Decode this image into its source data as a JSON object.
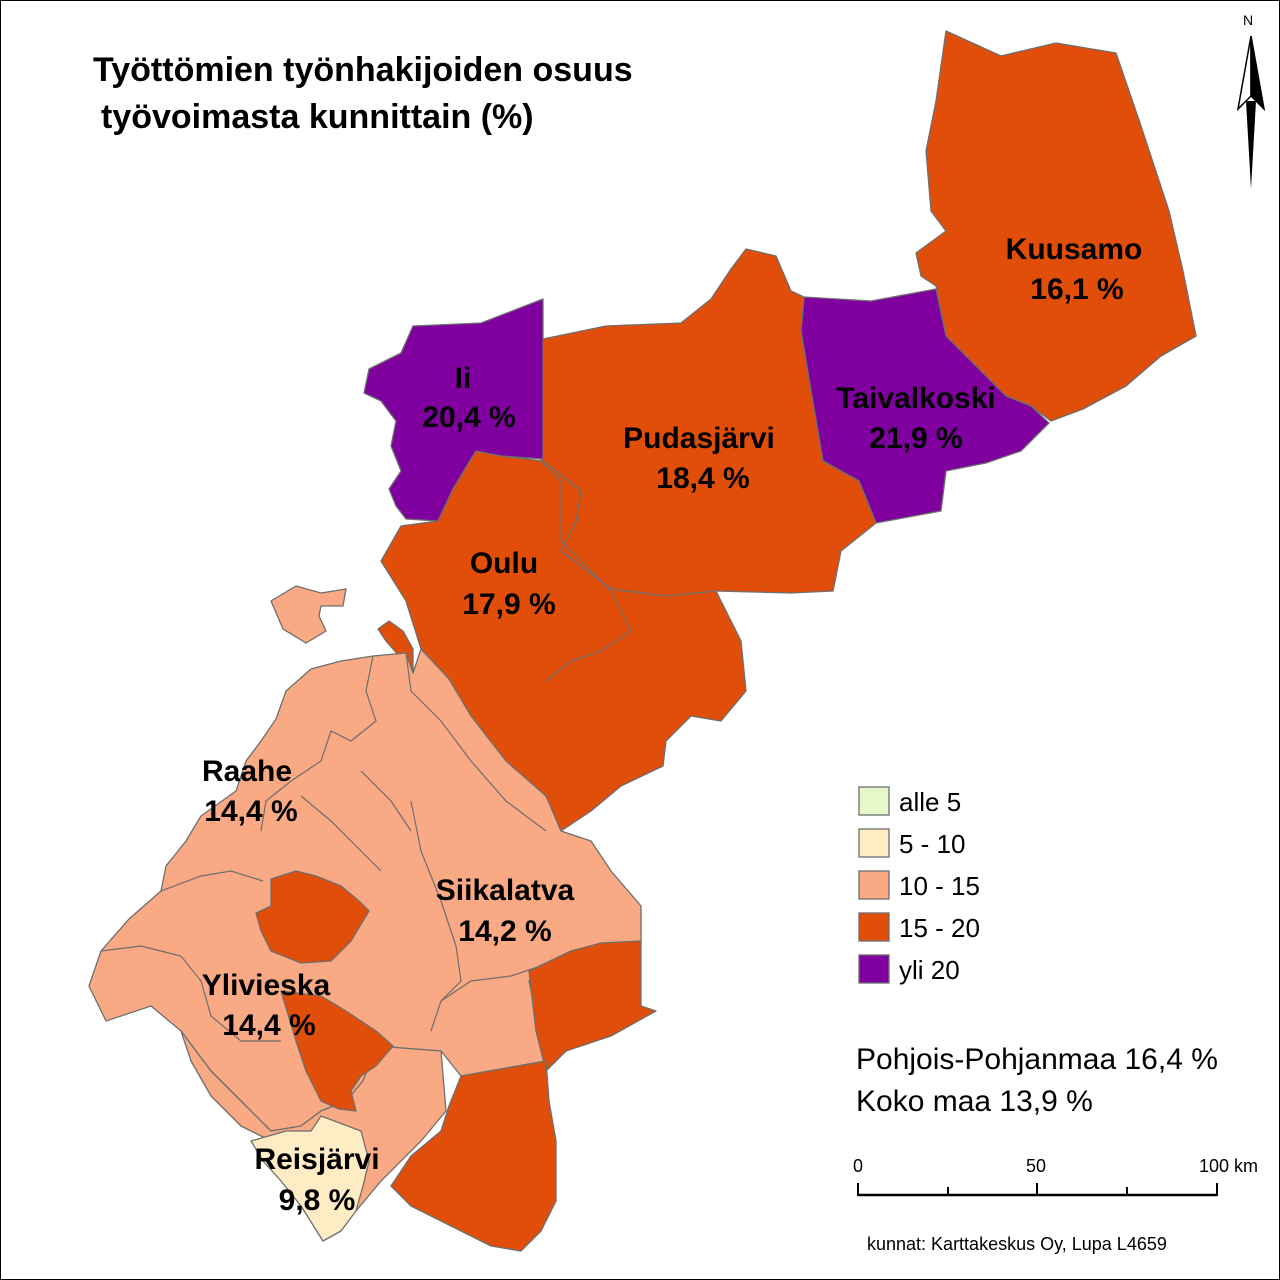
{
  "title": {
    "line1": "Työttömien työnhakijoiden osuus",
    "line2": "työvoimasta kunnittain (%)"
  },
  "colors": {
    "alle_5": "#e6f7c8",
    "5_10": "#ffebc4",
    "10_15": "#f9a983",
    "15_20": "#e04e0a",
    "yli_20": "#7f009e"
  },
  "municipalities": [
    {
      "name": "Kuusamo",
      "value": "16,1 %",
      "class": "15_20"
    },
    {
      "name": "Ii",
      "value": "20,4 %",
      "class": "yli_20"
    },
    {
      "name": "Taivalkoski",
      "value": "21,9 %",
      "class": "yli_20"
    },
    {
      "name": "Pudasjärvi",
      "value": "18,4 %",
      "class": "15_20"
    },
    {
      "name": "Oulu",
      "value": "17,9  %",
      "class": "15_20"
    },
    {
      "name": "Raahe",
      "value": "14,4 %",
      "class": "10_15"
    },
    {
      "name": "Siikalatva",
      "value": "14,2 %",
      "class": "10_15"
    },
    {
      "name": "Ylivieska",
      "value": "14,4 %",
      "class": "10_15"
    },
    {
      "name": "Reisjärvi",
      "value": "9,8 %",
      "class": "5_10"
    }
  ],
  "legend": [
    {
      "label": "alle 5",
      "color": "#e6f7c8"
    },
    {
      "label": "5 - 10",
      "color": "#ffebc4"
    },
    {
      "label": "10 - 15",
      "color": "#f9a983"
    },
    {
      "label": "15 - 20",
      "color": "#e04e0a"
    },
    {
      "label": "yli 20",
      "color": "#7f009e"
    }
  ],
  "stats": {
    "region": "Pohjois-Pohjanmaa 16,4 %",
    "country": "Koko maa 13,9 %"
  },
  "scalebar": {
    "labels": [
      "0",
      "50",
      "100 km"
    ]
  },
  "north_arrow": {
    "label": "N"
  },
  "credit": "kunnat: Karttakeskus Oy, Lupa L4659"
}
